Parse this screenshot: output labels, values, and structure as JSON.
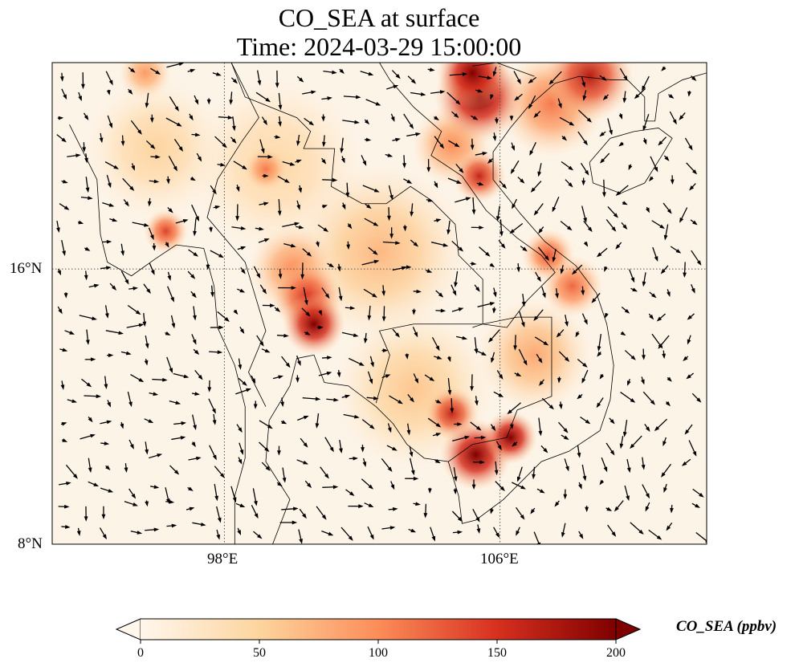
{
  "title": {
    "line1": "CO_SEA at surface",
    "line2": "Time: 2024-03-29 15:00:00"
  },
  "map": {
    "extent": {
      "lon": [
        93,
        112
      ],
      "lat": [
        8,
        22
      ]
    },
    "x_ticks": [
      {
        "value": 98,
        "label": "98°E"
      },
      {
        "value": 106,
        "label": "106°E"
      }
    ],
    "y_ticks": [
      {
        "value": 16,
        "label": "16°N"
      },
      {
        "value": 8,
        "label": "8°N"
      }
    ],
    "background_color": "#fdf4e8"
  },
  "chart_data": {
    "type": "heatmap",
    "variable": "CO_SEA",
    "units": "ppbv",
    "hotspots": [
      {
        "lon": 105.4,
        "lat": 21.0,
        "value": 200,
        "r": 1.0
      },
      {
        "lon": 105.2,
        "lat": 21.7,
        "value": 200,
        "r": 0.8
      },
      {
        "lon": 108.6,
        "lat": 21.6,
        "value": 170,
        "r": 1.0
      },
      {
        "lon": 107.5,
        "lat": 20.8,
        "value": 110,
        "r": 1.2
      },
      {
        "lon": 105.4,
        "lat": 18.7,
        "value": 160,
        "r": 0.6
      },
      {
        "lon": 104.6,
        "lat": 19.6,
        "value": 100,
        "r": 0.9
      },
      {
        "lon": 100.6,
        "lat": 14.4,
        "value": 200,
        "r": 0.7
      },
      {
        "lon": 100.4,
        "lat": 15.2,
        "value": 150,
        "r": 0.8
      },
      {
        "lon": 100.0,
        "lat": 16.0,
        "value": 100,
        "r": 1.0
      },
      {
        "lon": 102.5,
        "lat": 16.5,
        "value": 70,
        "r": 2.0
      },
      {
        "lon": 105.3,
        "lat": 10.6,
        "value": 200,
        "r": 0.8
      },
      {
        "lon": 106.3,
        "lat": 11.1,
        "value": 200,
        "r": 0.6
      },
      {
        "lon": 104.6,
        "lat": 11.8,
        "value": 160,
        "r": 0.6
      },
      {
        "lon": 107.4,
        "lat": 16.4,
        "value": 130,
        "r": 0.6
      },
      {
        "lon": 108.1,
        "lat": 15.5,
        "value": 120,
        "r": 0.7
      },
      {
        "lon": 107.0,
        "lat": 13.5,
        "value": 80,
        "r": 1.3
      },
      {
        "lon": 96.3,
        "lat": 17.1,
        "value": 140,
        "r": 0.5
      },
      {
        "lon": 99.2,
        "lat": 18.9,
        "value": 110,
        "r": 0.5
      },
      {
        "lon": 95.7,
        "lat": 21.7,
        "value": 90,
        "r": 0.6
      },
      {
        "lon": 96.0,
        "lat": 19.5,
        "value": 50,
        "r": 1.6
      },
      {
        "lon": 99.5,
        "lat": 19.0,
        "value": 45,
        "r": 2.0
      },
      {
        "lon": 103.5,
        "lat": 12.5,
        "value": 60,
        "r": 1.8
      }
    ]
  },
  "colorbar": {
    "label": "CO_SEA (ppbv)",
    "min": 0,
    "max": 200,
    "extend": "both",
    "ticks": [
      {
        "value": 0,
        "label": "0"
      },
      {
        "value": 50,
        "label": "50"
      },
      {
        "value": 100,
        "label": "100"
      },
      {
        "value": 150,
        "label": "150"
      },
      {
        "value": 200,
        "label": "200"
      }
    ],
    "colors": [
      "#fff7ec",
      "#fdd49e",
      "#fc8d59",
      "#d7301f",
      "#7f0000"
    ]
  }
}
